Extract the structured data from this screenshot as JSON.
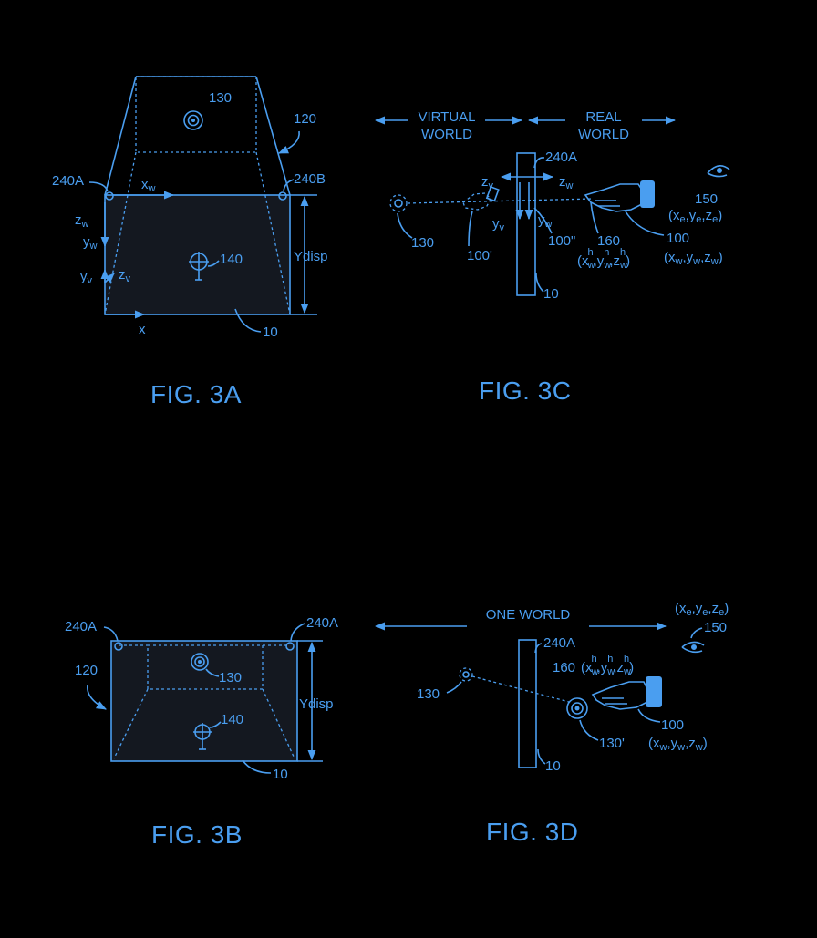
{
  "fig3a": {
    "caption": "FIG. 3A",
    "labels": {
      "target": "130",
      "display_frame": "120",
      "cam_left": "240A",
      "cam_right": "240B",
      "axis_xw": "x",
      "axis_xw_sub": "w",
      "axis_zw": "z",
      "axis_zw_sub": "w",
      "axis_yw": "y",
      "axis_yw_sub": "w",
      "axis_yv": "y",
      "axis_yv_sub": "v",
      "axis_zv": "z",
      "axis_zv_sub": "v",
      "virtual_target": "140",
      "ydisp": "Ydisp",
      "axis_x": "x",
      "display": "10"
    }
  },
  "fig3b": {
    "caption": "FIG. 3B",
    "labels": {
      "cam_left": "240A",
      "cam_right": "240A",
      "display_frame": "120",
      "target": "130",
      "virtual_target": "140",
      "ydisp": "Ydisp",
      "display": "10"
    }
  },
  "fig3c": {
    "caption": "FIG. 3C",
    "labels": {
      "virtual_world_1": "VIRTUAL",
      "virtual_world_2": "WORLD",
      "real_world_1": "REAL",
      "real_world_2": "WORLD",
      "cam": "240A",
      "axis_zv": "z",
      "axis_zv_sub": "v",
      "axis_zw": "z",
      "axis_zw_sub": "w",
      "axis_yv": "y",
      "axis_yv_sub": "v",
      "axis_yw": "y",
      "axis_yw_sub": "w",
      "eye": "150",
      "eye_coords": "(xe,ye,ze)",
      "target": "130",
      "virtual_hand": "100'",
      "hand_shadow": "100\"",
      "fingertip": "160",
      "fingertip_coords": "(xwh,ywh,zwh)",
      "hand": "100",
      "hand_coords": "(xw,yw,zw)",
      "display": "10"
    }
  },
  "fig3d": {
    "caption": "FIG. 3D",
    "labels": {
      "one_world": "ONE WORLD",
      "eye_coords": "(xe,ye,ze)",
      "eye": "150",
      "cam": "240A",
      "fingertip": "160",
      "fingertip_coords": "(xwh,ywh,zwh)",
      "target": "130",
      "target_projected": "130'",
      "hand": "100",
      "hand_coords": "(xw,yw,zw)",
      "display": "10"
    }
  },
  "colors": {
    "line": "#4a9ef0",
    "background": "#000000"
  }
}
